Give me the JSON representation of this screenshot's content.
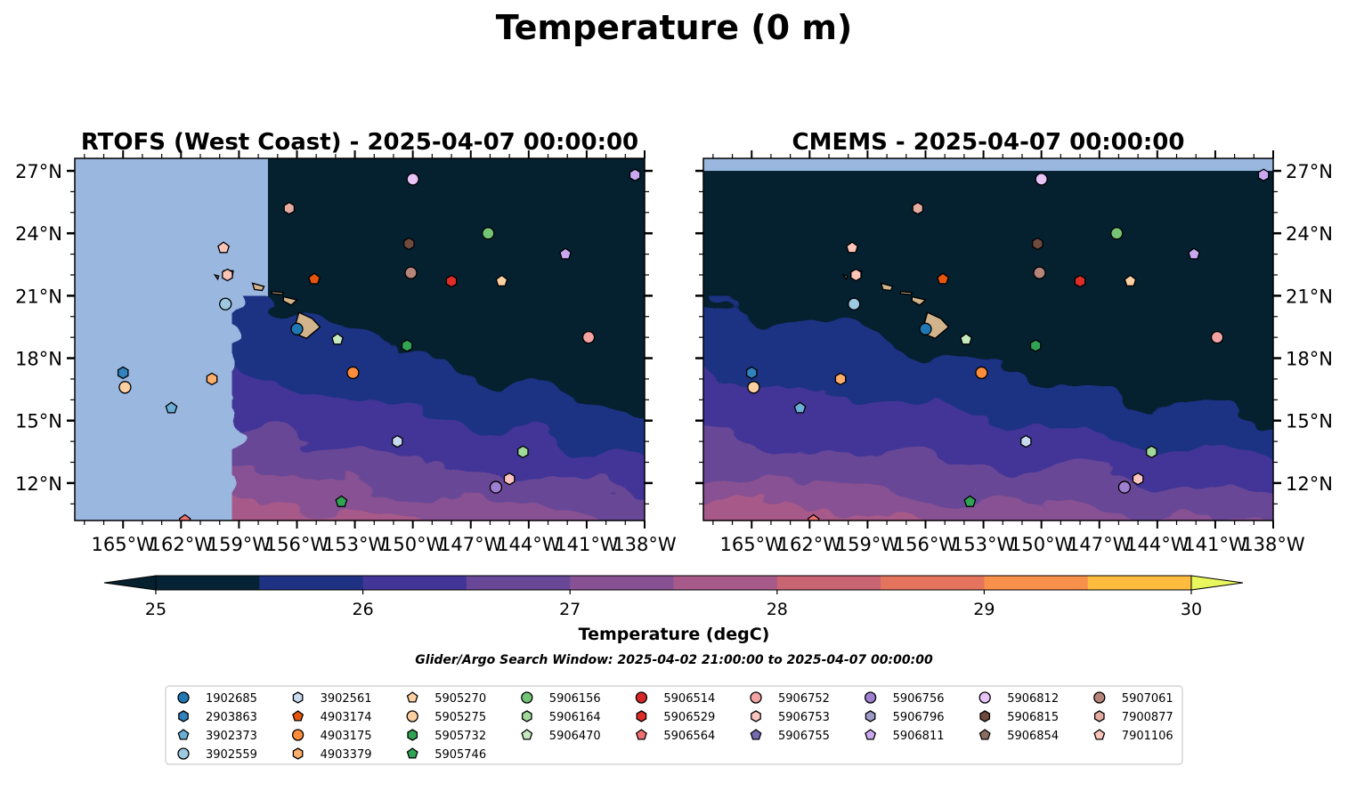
{
  "figure": {
    "suptitle": "Temperature (0 m)",
    "search_window": "Glider/Argo Search Window: 2025-04-02 21:00:00 to 2025-04-07 00:00:00"
  },
  "colors": {
    "no_data_fill": "#9ab7e0",
    "temperature_bins": [
      "#062335",
      "#1e3183",
      "#433597",
      "#674796",
      "#875193",
      "#a75a89",
      "#c96473",
      "#e5745e",
      "#f7904a",
      "#fdbc3e"
    ],
    "under": "#05202f",
    "over": "#e8f75e"
  },
  "chart_data": {
    "type": "map",
    "panels": [
      {
        "title": "RTOFS (West Coast) - 2025-04-07 00:00:00",
        "lat_labels_side": "left",
        "model_west_edge_lon": -157.5
      },
      {
        "title": "CMEMS - 2025-04-07 00:00:00",
        "lat_labels_side": "right",
        "model_north_edge_lat": 27.0
      }
    ],
    "extent": {
      "lon": [
        -167.5,
        -138.0
      ],
      "lat": [
        10.2,
        27.6
      ]
    },
    "xticks": [
      {
        "value": -165,
        "label": "165°W"
      },
      {
        "value": -162,
        "label": "162°W"
      },
      {
        "value": -159,
        "label": "159°W"
      },
      {
        "value": -156,
        "label": "156°W"
      },
      {
        "value": -153,
        "label": "153°W"
      },
      {
        "value": -150,
        "label": "150°W"
      },
      {
        "value": -147,
        "label": "147°W"
      },
      {
        "value": -144,
        "label": "144°W"
      },
      {
        "value": -141,
        "label": "141°W"
      },
      {
        "value": -138,
        "label": "138°W"
      }
    ],
    "yticks": [
      {
        "value": 27,
        "label": "27°N"
      },
      {
        "value": 24,
        "label": "24°N"
      },
      {
        "value": 21,
        "label": "21°N"
      },
      {
        "value": 18,
        "label": "18°N"
      },
      {
        "value": 15,
        "label": "15°N"
      },
      {
        "value": 12,
        "label": "12°N"
      }
    ],
    "colorbar": {
      "label": "Temperature (degC)",
      "vmin": 25,
      "vmax": 30,
      "step": 0.5,
      "ticks": [
        {
          "value": 25,
          "label": "25"
        },
        {
          "value": 26,
          "label": "26"
        },
        {
          "value": 27,
          "label": "27"
        },
        {
          "value": 28,
          "label": "28"
        },
        {
          "value": 29,
          "label": "29"
        },
        {
          "value": 30,
          "label": "30"
        }
      ],
      "extend": "both"
    },
    "floats": [
      {
        "id": "1902685",
        "color": "#1f77b4",
        "marker": "circle",
        "lon": -156.0,
        "lat": 19.4
      },
      {
        "id": "2903863",
        "color": "#3182bd",
        "marker": "hexagon",
        "lon": -165.0,
        "lat": 17.3
      },
      {
        "id": "3902373",
        "color": "#6baed6",
        "marker": "pentagon",
        "lon": -162.5,
        "lat": 15.6
      },
      {
        "id": "3902559",
        "color": "#9ecae1",
        "marker": "circle",
        "lon": -159.7,
        "lat": 20.6
      },
      {
        "id": "3902561",
        "color": "#c6dbef",
        "marker": "hexagon",
        "lon": -150.8,
        "lat": 14.0
      },
      {
        "id": "4903174",
        "color": "#e6550d",
        "marker": "pentagon",
        "lon": -155.1,
        "lat": 21.8
      },
      {
        "id": "4903175",
        "color": "#fd8d3c",
        "marker": "circle",
        "lon": -153.1,
        "lat": 17.3
      },
      {
        "id": "4903379",
        "color": "#fdae6b",
        "marker": "hexagon",
        "lon": -160.4,
        "lat": 17.0
      },
      {
        "id": "5905270",
        "color": "#fdd0a2",
        "marker": "pentagon",
        "lon": -145.4,
        "lat": 21.7
      },
      {
        "id": "5905275",
        "color": "#fdd0a2",
        "marker": "circle",
        "lon": -164.9,
        "lat": 16.6
      },
      {
        "id": "5905732",
        "color": "#31a354",
        "marker": "hexagon",
        "lon": -150.3,
        "lat": 18.6
      },
      {
        "id": "5905746",
        "color": "#31a354",
        "marker": "pentagon",
        "lon": -153.7,
        "lat": 11.1
      },
      {
        "id": "5906156",
        "color": "#74c476",
        "marker": "circle",
        "lon": -146.1,
        "lat": 24.0
      },
      {
        "id": "5906164",
        "color": "#a1d99b",
        "marker": "hexagon",
        "lon": -144.3,
        "lat": 13.5
      },
      {
        "id": "5906470",
        "color": "#c7e9c0",
        "marker": "pentagon",
        "lon": -153.9,
        "lat": 18.9
      },
      {
        "id": "5906514",
        "color": "#d62728",
        "marker": "circle",
        "lon": -147.5,
        "lat": 21.9,
        "legend_only": true
      },
      {
        "id": "5906529",
        "color": "#de2d26",
        "marker": "hexagon",
        "lon": -148.0,
        "lat": 21.7
      },
      {
        "id": "5906564",
        "color": "#f07070",
        "marker": "pentagon",
        "lon": -161.8,
        "lat": 10.2
      },
      {
        "id": "5906752",
        "color": "#f4a3a3",
        "marker": "circle",
        "lon": -140.9,
        "lat": 19.0
      },
      {
        "id": "5906753",
        "color": "#fcc5c0",
        "marker": "hexagon",
        "lon": -145.0,
        "lat": 12.2
      },
      {
        "id": "5906755",
        "color": "#756bb1",
        "marker": "pentagon",
        "lon": -146.0,
        "lat": 21.0,
        "legend_only": true
      },
      {
        "id": "5906756",
        "color": "#9e7fd0",
        "marker": "circle",
        "lon": -145.7,
        "lat": 11.8
      },
      {
        "id": "5906796",
        "color": "#9e9ac8",
        "marker": "hexagon",
        "lon": -142.0,
        "lat": 23.2,
        "legend_only": true
      },
      {
        "id": "5906811",
        "color": "#c9a8f0",
        "marker": "pentagon",
        "lon": -142.1,
        "lat": 23.0
      },
      {
        "id": "5906812",
        "color": "#e8c4f7",
        "marker": "circle",
        "lon": -150.0,
        "lat": 26.6
      },
      {
        "id": "5906815",
        "color": "#6f4a3f",
        "marker": "hexagon",
        "lon": -150.2,
        "lat": 23.5
      },
      {
        "id": "5906854",
        "color": "#8c6d62",
        "marker": "pentagon",
        "lon": -150.0,
        "lat": 22.5,
        "legend_only": true
      },
      {
        "id": "5907061",
        "color": "#b5857a",
        "marker": "circle",
        "lon": -150.1,
        "lat": 22.1
      },
      {
        "id": "7900877",
        "color": "#e7aca1",
        "marker": "hexagon",
        "lon": -156.4,
        "lat": 25.2
      },
      {
        "id": "7901106",
        "color": "#fdc4b8",
        "marker": "pentagon",
        "lon": -159.8,
        "lat": 23.3
      },
      {
        "id": "5906900",
        "color": "#c9a8f0",
        "marker": "hexagon",
        "lon": -138.5,
        "lat": 26.8,
        "map_only": true
      },
      {
        "id": "5906901",
        "color": "#fdc4b8",
        "marker": "hexagon",
        "lon": -159.6,
        "lat": 22.0,
        "map_only": true
      }
    ],
    "legend": {
      "placement": "bottom-center",
      "columns": [
        [
          "1902685",
          "2903863",
          "3902373",
          "3902559"
        ],
        [
          "3902561",
          "4903174",
          "4903175",
          "4903379"
        ],
        [
          "5905270",
          "5905275",
          "5905732",
          "5905746"
        ],
        [
          "5906156",
          "5906164",
          "5906470"
        ],
        [
          "5906514",
          "5906529",
          "5906564"
        ],
        [
          "5906752",
          "5906753",
          "5906755"
        ],
        [
          "5906756",
          "5906796",
          "5906811"
        ],
        [
          "5906812",
          "5906815",
          "5906854"
        ],
        [
          "5907061",
          "7900877",
          "7901106"
        ]
      ]
    }
  }
}
